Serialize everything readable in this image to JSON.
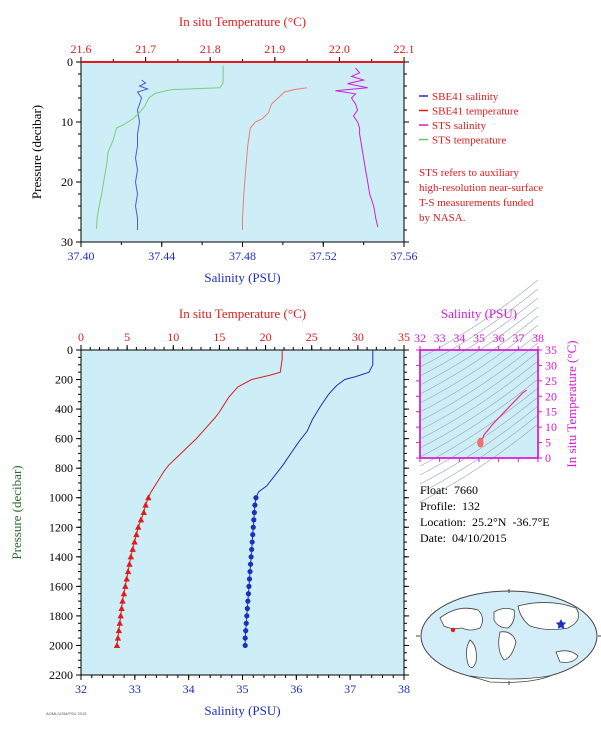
{
  "chart_data": [
    {
      "type": "line",
      "panel": "top",
      "top_axis": {
        "label": "In situ Temperature (°C)",
        "ticks": [
          "21.6",
          "21.7",
          "21.8",
          "21.9",
          "22.0",
          "22.1"
        ],
        "range": [
          21.6,
          22.1
        ]
      },
      "bottom_axis": {
        "label": "Salinity (PSU)",
        "ticks": [
          "37.40",
          "37.44",
          "37.48",
          "37.52",
          "37.56"
        ],
        "range": [
          37.4,
          37.56
        ]
      },
      "y_axis": {
        "label": "Pressure (decibar)",
        "ticks": [
          "0",
          "10",
          "20",
          "30"
        ],
        "range": [
          0,
          30
        ],
        "inverted": true
      },
      "legend": [
        {
          "name": "SBE41 salinity",
          "color": "#1c2fc0"
        },
        {
          "name": "SBE41 temperature",
          "color": "#e01b1b"
        },
        {
          "name": "STS salinity",
          "color": "#d61bd6"
        },
        {
          "name": "STS temperature",
          "color": "#6cc26c"
        }
      ],
      "note": [
        "STS refers to auxiliary",
        "high-resolution near-surface",
        "T-S measurements funded",
        "by NASA."
      ],
      "series": [
        {
          "name": "SBE41 salinity",
          "axis": "salinity",
          "color": "#4a5cd8",
          "points": [
            [
              37.43,
              3.0
            ],
            [
              37.432,
              3.5
            ],
            [
              37.429,
              4.0
            ],
            [
              37.433,
              4.5
            ],
            [
              37.428,
              5.0
            ],
            [
              37.43,
              6
            ],
            [
              37.428,
              8
            ],
            [
              37.429,
              10
            ],
            [
              37.428,
              12
            ],
            [
              37.428,
              14
            ],
            [
              37.427,
              16
            ],
            [
              37.428,
              18
            ],
            [
              37.427,
              20
            ],
            [
              37.428,
              22
            ],
            [
              37.427,
              24
            ],
            [
              37.428,
              26
            ],
            [
              37.428,
              28
            ]
          ]
        },
        {
          "name": "SBE41 temperature",
          "axis": "temperature",
          "color": "#f07a7a",
          "points": [
            [
              21.95,
              4.3
            ],
            [
              21.93,
              4.6
            ],
            [
              21.915,
              5.0
            ],
            [
              21.905,
              6
            ],
            [
              21.895,
              7
            ],
            [
              21.89,
              8.5
            ],
            [
              21.88,
              9.5
            ],
            [
              21.87,
              10
            ],
            [
              21.862,
              11
            ],
            [
              21.858,
              14
            ],
            [
              21.855,
              18
            ],
            [
              21.852,
              22
            ],
            [
              21.85,
              26
            ],
            [
              21.85,
              28
            ]
          ]
        },
        {
          "name": "STS salinity",
          "axis": "salinity",
          "color": "#d61bd6",
          "points": [
            [
              37.536,
              1.0
            ],
            [
              37.538,
              1.8
            ],
            [
              37.534,
              2.4
            ],
            [
              37.54,
              3.0
            ],
            [
              37.532,
              3.6
            ],
            [
              37.542,
              4.3
            ],
            [
              37.526,
              4.8
            ],
            [
              37.536,
              5.3
            ],
            [
              37.534,
              6.0
            ],
            [
              37.536,
              7
            ],
            [
              37.537,
              8
            ],
            [
              37.535,
              9
            ],
            [
              37.537,
              10
            ],
            [
              37.538,
              11
            ],
            [
              37.538,
              12
            ],
            [
              37.539,
              14
            ],
            [
              37.54,
              16
            ],
            [
              37.541,
              18
            ],
            [
              37.542,
              20
            ],
            [
              37.543,
              22
            ],
            [
              37.545,
              24
            ],
            [
              37.546,
              26
            ],
            [
              37.547,
              27.5
            ]
          ]
        },
        {
          "name": "STS temperature",
          "axis": "temperature",
          "color": "#7ccc7c",
          "points": [
            [
              21.82,
              0.6
            ],
            [
              21.82,
              1.5
            ],
            [
              21.82,
              2.5
            ],
            [
              21.82,
              3.5
            ],
            [
              21.815,
              4.3
            ],
            [
              21.74,
              4.6
            ],
            [
              21.715,
              5.2
            ],
            [
              21.705,
              6
            ],
            [
              21.698,
              7.5
            ],
            [
              21.69,
              8.5
            ],
            [
              21.68,
              9.5
            ],
            [
              21.665,
              10.5
            ],
            [
              21.655,
              11
            ],
            [
              21.65,
              13
            ],
            [
              21.642,
              15
            ],
            [
              21.64,
              17
            ],
            [
              21.635,
              20
            ],
            [
              21.632,
              22
            ],
            [
              21.628,
              24
            ],
            [
              21.625,
              26
            ],
            [
              21.624,
              27.8
            ]
          ]
        }
      ]
    },
    {
      "type": "line",
      "panel": "main",
      "top_axis": {
        "label": "In situ Temperature (°C)",
        "ticks": [
          "0",
          "5",
          "10",
          "15",
          "20",
          "25",
          "30",
          "35"
        ],
        "range": [
          0,
          35
        ]
      },
      "bottom_axis": {
        "label": "Salinity (PSU)",
        "ticks": [
          "32",
          "33",
          "34",
          "35",
          "36",
          "37",
          "38"
        ],
        "range": [
          32,
          38
        ]
      },
      "y_axis": {
        "label": "Pressure (decibar)",
        "ticks": [
          "0",
          "200",
          "400",
          "600",
          "800",
          "1000",
          "1200",
          "1400",
          "1600",
          "1800",
          "2000",
          "2200"
        ],
        "range": [
          0,
          2200
        ],
        "inverted": true
      },
      "series": [
        {
          "name": "temperature",
          "axis": "temperature",
          "color": "#e01b1b",
          "points": [
            [
              21.8,
              0
            ],
            [
              21.8,
              60
            ],
            [
              21.6,
              150
            ],
            [
              20.5,
              170
            ],
            [
              18.5,
              200
            ],
            [
              17.0,
              250
            ],
            [
              16.0,
              320
            ],
            [
              15.0,
              420
            ],
            [
              14.5,
              460
            ],
            [
              13.5,
              530
            ],
            [
              12.5,
              600
            ],
            [
              11.5,
              660
            ],
            [
              10.5,
              720
            ],
            [
              9.5,
              780
            ],
            [
              9.0,
              820
            ],
            [
              8.2,
              900
            ],
            [
              7.6,
              960
            ],
            [
              7.3,
              1000
            ],
            [
              7.0,
              1050
            ],
            [
              6.8,
              1100
            ],
            [
              6.5,
              1150
            ],
            [
              6.2,
              1200
            ],
            [
              6.0,
              1250
            ],
            [
              5.8,
              1300
            ],
            [
              5.6,
              1350
            ],
            [
              5.4,
              1400
            ],
            [
              5.25,
              1450
            ],
            [
              5.1,
              1500
            ],
            [
              4.95,
              1550
            ],
            [
              4.8,
              1600
            ],
            [
              4.65,
              1650
            ],
            [
              4.5,
              1700
            ],
            [
              4.4,
              1750
            ],
            [
              4.3,
              1800
            ],
            [
              4.2,
              1850
            ],
            [
              4.1,
              1900
            ],
            [
              4.0,
              1950
            ],
            [
              3.9,
              2000
            ]
          ]
        },
        {
          "name": "salinity",
          "axis": "salinity",
          "color": "#1c2fc0",
          "points": [
            [
              37.42,
              0
            ],
            [
              37.42,
              100
            ],
            [
              37.35,
              150
            ],
            [
              37.1,
              180
            ],
            [
              36.9,
              200
            ],
            [
              36.75,
              240
            ],
            [
              36.6,
              300
            ],
            [
              36.45,
              380
            ],
            [
              36.3,
              470
            ],
            [
              36.2,
              550
            ],
            [
              36.05,
              620
            ],
            [
              35.9,
              700
            ],
            [
              35.75,
              780
            ],
            [
              35.6,
              850
            ],
            [
              35.45,
              920
            ],
            [
              35.3,
              960
            ],
            [
              35.25,
              1000
            ],
            [
              35.23,
              1050
            ],
            [
              35.22,
              1100
            ],
            [
              35.21,
              1150
            ],
            [
              35.2,
              1200
            ],
            [
              35.19,
              1250
            ],
            [
              35.18,
              1300
            ],
            [
              35.17,
              1350
            ],
            [
              35.16,
              1400
            ],
            [
              35.15,
              1450
            ],
            [
              35.14,
              1500
            ],
            [
              35.13,
              1550
            ],
            [
              35.12,
              1600
            ],
            [
              35.11,
              1650
            ],
            [
              35.1,
              1700
            ],
            [
              35.09,
              1750
            ],
            [
              35.08,
              1800
            ],
            [
              35.07,
              1850
            ],
            [
              35.06,
              1900
            ],
            [
              35.05,
              1950
            ],
            [
              35.05,
              2000
            ]
          ]
        }
      ]
    },
    {
      "type": "scatter",
      "panel": "ts-diagram",
      "x_axis": {
        "label": "Salinity (PSU)",
        "ticks": [
          "32",
          "33",
          "34",
          "35",
          "36",
          "37",
          "38"
        ],
        "range": [
          32,
          38
        ]
      },
      "y_axis": {
        "label": "In situ Temperature (°C)",
        "ticks": [
          "0",
          "5",
          "10",
          "15",
          "20",
          "25",
          "30",
          "35"
        ],
        "range": [
          0,
          35
        ]
      },
      "series": [
        {
          "name": "T-S",
          "color": "#e8308a",
          "points": [
            [
              35.05,
              4
            ],
            [
              35.1,
              5
            ],
            [
              35.2,
              6.5
            ],
            [
              35.25,
              7.5
            ],
            [
              35.45,
              9
            ],
            [
              35.7,
              11
            ],
            [
              36.0,
              13
            ],
            [
              36.3,
              15
            ],
            [
              36.6,
              17
            ],
            [
              36.9,
              19
            ],
            [
              37.2,
              21
            ],
            [
              37.42,
              22
            ]
          ]
        }
      ]
    }
  ],
  "info": {
    "float": "Float:  7660",
    "profile": "Profile:  132",
    "location": "Location:  25.2°N  -36.7°E",
    "date": "Date:  04/10/2015"
  },
  "footer": "AOML/USM/FSU 2015",
  "colors": {
    "plot_bg": "#cdeef7",
    "temp": "#e01b1b",
    "sal": "#1c2fc0",
    "ts": "#d61bd6",
    "ylabel": "#2e6b2e"
  }
}
